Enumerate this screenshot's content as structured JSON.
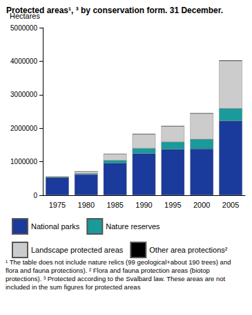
{
  "chart_data": {
    "type": "bar",
    "title": "Protected areas¹, ³ by conservation form. 31 December.",
    "y_label": "Hectares",
    "categories": [
      "1975",
      "1980",
      "1985",
      "1990",
      "1995",
      "2000",
      "2005"
    ],
    "series": [
      {
        "name": "National parks",
        "color": "#1a3a9c",
        "values": [
          520000,
          620000,
          960000,
          1250000,
          1370000,
          1380000,
          2220000
        ]
      },
      {
        "name": "Nature reserves",
        "color": "#1a9a9a",
        "values": [
          20000,
          30000,
          80000,
          150000,
          220000,
          290000,
          370000
        ]
      },
      {
        "name": "Landscape protected areas",
        "color": "#cccccc",
        "values": [
          10000,
          60000,
          190000,
          420000,
          470000,
          770000,
          1420000
        ]
      },
      {
        "name": "Other area protections²",
        "color": "#000000",
        "values": [
          5000,
          5000,
          5000,
          10000,
          10000,
          10000,
          15000
        ]
      }
    ],
    "stacked": true,
    "ylim": [
      0,
      5000000
    ],
    "yticks": [
      0,
      1000000,
      2000000,
      3000000,
      4000000,
      5000000
    ],
    "grid": false,
    "legend": "bottom",
    "notes": "¹ The table does not include nature relics (99 geological+about 190 trees) and flora and fauna protections). ² Flora and fauna protection areas (biotop protections). ³ Protected according to the Svalbard law. These areas are not included in the sum figures for protected areas"
  }
}
